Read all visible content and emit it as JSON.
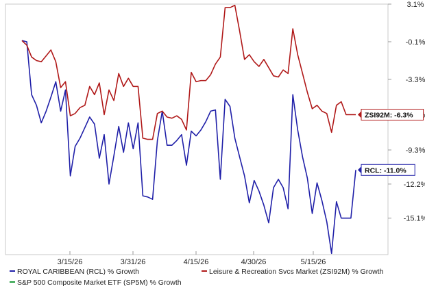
{
  "chart_data": {
    "type": "line",
    "title": "",
    "xlabel": "",
    "ylabel": "",
    "y_unit": "%",
    "ylim": [
      -18.2,
      3.1
    ],
    "y_ticks": [
      {
        "value": 3.1,
        "label": "3.1%"
      },
      {
        "value": -0.1,
        "label": "-0.1%"
      },
      {
        "value": -3.3,
        "label": "-3.3%"
      },
      {
        "value": -6.3,
        "label": "-6.3%"
      },
      {
        "value": -9.3,
        "label": "-9.3%"
      },
      {
        "value": -12.2,
        "label": "-12.2%"
      },
      {
        "value": -15.1,
        "label": "-15.1%"
      }
    ],
    "x_ticks": [
      "3/15/26",
      "3/31/26",
      "4/15/26",
      "4/30/26",
      "5/15/26"
    ],
    "grid": false,
    "legend_position": "bottom",
    "series": [
      {
        "name": "ROYAL CARIBBEAN (RCL) % Growth",
        "color": "#1f1fa8",
        "end_label": "RCL: -11.0%",
        "points": [
          [
            0,
            0.0
          ],
          [
            1,
            -0.1
          ],
          [
            2,
            -4.6
          ],
          [
            3,
            -5.5
          ],
          [
            4,
            -7.0
          ],
          [
            5,
            -6.0
          ],
          [
            6,
            -4.8
          ],
          [
            7,
            -3.5
          ],
          [
            8,
            -6.0
          ],
          [
            9,
            -4.2
          ],
          [
            10,
            -11.5
          ],
          [
            11,
            -9.0
          ],
          [
            12,
            -8.3
          ],
          [
            13,
            -7.4
          ],
          [
            14,
            -6.5
          ],
          [
            15,
            -7.1
          ],
          [
            16,
            -10.0
          ],
          [
            17,
            -8.0
          ],
          [
            18,
            -12.2
          ],
          [
            19,
            -9.8
          ],
          [
            20,
            -7.3
          ],
          [
            21,
            -9.5
          ],
          [
            22,
            -7.0
          ],
          [
            23,
            -9.2
          ],
          [
            24,
            -7.0
          ],
          [
            25,
            -13.2
          ],
          [
            26,
            -13.3
          ],
          [
            27,
            -13.5
          ],
          [
            28,
            -8.5
          ],
          [
            29,
            -6.0
          ],
          [
            30,
            -8.9
          ],
          [
            31,
            -8.9
          ],
          [
            32,
            -8.5
          ],
          [
            33,
            -8.0
          ],
          [
            34,
            -10.6
          ],
          [
            35,
            -7.7
          ],
          [
            36,
            -8.1
          ],
          [
            37,
            -7.6
          ],
          [
            38,
            -6.9
          ],
          [
            39,
            -6.0
          ],
          [
            40,
            -5.9
          ],
          [
            41,
            -11.8
          ],
          [
            42,
            -5.0
          ],
          [
            43,
            -5.6
          ],
          [
            44,
            -8.3
          ],
          [
            45,
            -9.9
          ],
          [
            46,
            -11.5
          ],
          [
            47,
            -13.8
          ],
          [
            48,
            -11.9
          ],
          [
            49,
            -12.8
          ],
          [
            50,
            -14.0
          ],
          [
            51,
            -15.5
          ],
          [
            52,
            -12.5
          ],
          [
            53,
            -11.8
          ],
          [
            54,
            -12.5
          ],
          [
            55,
            -14.3
          ],
          [
            56,
            -4.6
          ],
          [
            57,
            -7.6
          ],
          [
            58,
            -9.9
          ],
          [
            59,
            -11.7
          ],
          [
            60,
            -14.7
          ],
          [
            61,
            -12.1
          ],
          [
            62,
            -13.6
          ],
          [
            63,
            -15.4
          ],
          [
            64,
            -18.1
          ],
          [
            65,
            -13.7
          ],
          [
            66,
            -15.1
          ],
          [
            67,
            -15.1
          ],
          [
            68,
            -15.1
          ],
          [
            69,
            -11.0
          ]
        ]
      },
      {
        "name": "Leisure & Recreation Svcs Market (ZSI92M) % Growth",
        "color": "#b01818",
        "end_label": "ZSI92M: -6.3%",
        "points": [
          [
            0,
            0.0
          ],
          [
            1,
            -0.4
          ],
          [
            2,
            -1.4
          ],
          [
            3,
            -1.7
          ],
          [
            4,
            -1.8
          ],
          [
            5,
            -1.3
          ],
          [
            6,
            -0.8
          ],
          [
            7,
            -1.8
          ],
          [
            8,
            -4.0
          ],
          [
            9,
            -3.5
          ],
          [
            10,
            -6.4
          ],
          [
            11,
            -6.2
          ],
          [
            12,
            -5.7
          ],
          [
            13,
            -5.5
          ],
          [
            14,
            -3.9
          ],
          [
            15,
            -4.6
          ],
          [
            16,
            -3.6
          ],
          [
            17,
            -6.3
          ],
          [
            18,
            -4.2
          ],
          [
            19,
            -5.1
          ],
          [
            20,
            -2.8
          ],
          [
            21,
            -3.9
          ],
          [
            22,
            -3.2
          ],
          [
            23,
            -3.9
          ],
          [
            24,
            -3.9
          ],
          [
            25,
            -8.3
          ],
          [
            26,
            -8.4
          ],
          [
            27,
            -8.4
          ],
          [
            28,
            -6.2
          ],
          [
            29,
            -6.0
          ],
          [
            30,
            -6.5
          ],
          [
            31,
            -6.6
          ],
          [
            32,
            -6.4
          ],
          [
            33,
            -6.7
          ],
          [
            34,
            -7.6
          ],
          [
            35,
            -2.7
          ],
          [
            36,
            -3.5
          ],
          [
            37,
            -3.4
          ],
          [
            38,
            -3.4
          ],
          [
            39,
            -2.9
          ],
          [
            40,
            -2.0
          ],
          [
            41,
            -1.4
          ],
          [
            42,
            2.8
          ],
          [
            43,
            2.8
          ],
          [
            44,
            3.0
          ],
          [
            45,
            0.8
          ],
          [
            46,
            -1.6
          ],
          [
            47,
            -1.2
          ],
          [
            48,
            -1.8
          ],
          [
            49,
            -2.2
          ],
          [
            50,
            -1.6
          ],
          [
            51,
            -2.3
          ],
          [
            52,
            -3.0
          ],
          [
            53,
            -3.1
          ],
          [
            54,
            -2.5
          ],
          [
            55,
            -2.8
          ],
          [
            56,
            1.0
          ],
          [
            57,
            -1.2
          ],
          [
            58,
            -2.8
          ],
          [
            59,
            -4.4
          ],
          [
            60,
            -5.8
          ],
          [
            61,
            -5.5
          ],
          [
            62,
            -6.0
          ],
          [
            63,
            -6.2
          ],
          [
            64,
            -7.8
          ],
          [
            65,
            -5.5
          ],
          [
            66,
            -5.2
          ],
          [
            67,
            -6.3
          ],
          [
            68,
            -6.3
          ],
          [
            69,
            -6.3
          ]
        ]
      },
      {
        "name": "S&P 500 Composite Market ETF (SP5M) % Growth",
        "color": "#1e9a3a",
        "points": []
      }
    ]
  }
}
